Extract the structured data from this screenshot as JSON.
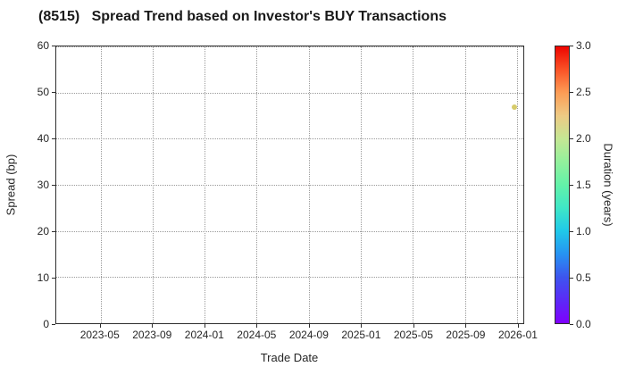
{
  "chart_data": {
    "type": "scatter",
    "title": "(8515)   Spread Trend based on Investor's BUY Transactions",
    "xlabel": "Trade Date",
    "ylabel": "Spread (bp)",
    "xlim_years": [
      2023.05,
      2026.04
    ],
    "ylim": [
      0,
      60
    ],
    "grid": "dotted",
    "x_ticks": [
      {
        "year": 2023.3333,
        "label": "2023-05"
      },
      {
        "year": 2023.6667,
        "label": "2023-09"
      },
      {
        "year": 2024.0,
        "label": "2024-01"
      },
      {
        "year": 2024.3333,
        "label": "2024-05"
      },
      {
        "year": 2024.6667,
        "label": "2024-09"
      },
      {
        "year": 2025.0,
        "label": "2025-01"
      },
      {
        "year": 2025.3333,
        "label": "2025-05"
      },
      {
        "year": 2025.6667,
        "label": "2025-09"
      },
      {
        "year": 2026.0,
        "label": "2026-01"
      }
    ],
    "y_ticks": [
      {
        "value": 0,
        "label": "0"
      },
      {
        "value": 10,
        "label": "10"
      },
      {
        "value": 20,
        "label": "20"
      },
      {
        "value": 30,
        "label": "30"
      },
      {
        "value": 40,
        "label": "40"
      },
      {
        "value": 50,
        "label": "50"
      },
      {
        "value": 60,
        "label": "60"
      }
    ],
    "points": [
      {
        "date": "2025-12",
        "x_year": 2025.98,
        "spread_bp": 46.8,
        "duration_years": 2.2,
        "color": "#d6cb6b"
      }
    ],
    "colorbar": {
      "label": "Duration (years)",
      "min": 0.0,
      "max": 3.0,
      "ticks": [
        {
          "value": 3.0,
          "label": "3.0"
        },
        {
          "value": 2.5,
          "label": "2.5"
        },
        {
          "value": 2.0,
          "label": "2.0"
        },
        {
          "value": 1.5,
          "label": "1.5"
        },
        {
          "value": 1.0,
          "label": "1.0"
        },
        {
          "value": 0.5,
          "label": "0.5"
        },
        {
          "value": 0.0,
          "label": "0.0"
        }
      ],
      "gradient_top_to_bottom": [
        "#ed0400",
        "#fa5226",
        "#fc9c55",
        "#eeca84",
        "#c5e794",
        "#93f09c",
        "#63f2a9",
        "#3fe7c7",
        "#20c9e9",
        "#2693f2",
        "#3d55ee",
        "#5b2af7",
        "#7f00fe"
      ]
    },
    "colors": {
      "frame": "#2e2e2e",
      "gridline": "#9a9a9a",
      "text": "#262626"
    }
  }
}
